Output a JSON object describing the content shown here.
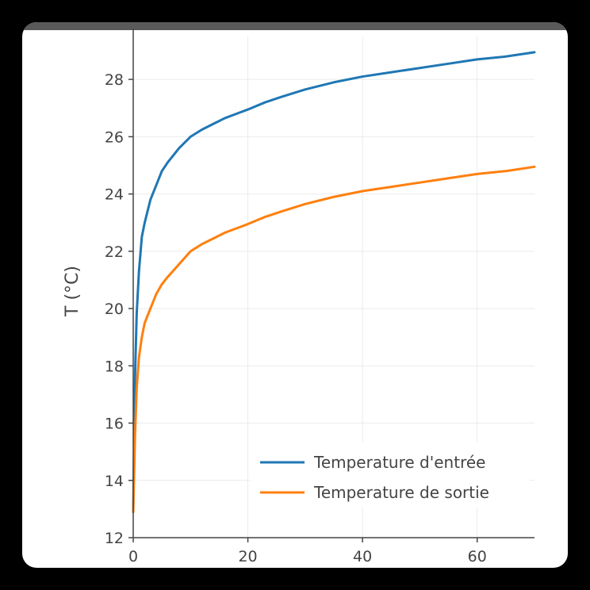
{
  "chart_data": {
    "type": "line",
    "title": "",
    "xlabel": "",
    "ylabel": "T (°C)",
    "xlim": [
      0,
      70
    ],
    "ylim": [
      12,
      29.5
    ],
    "xticks": [
      0,
      20,
      40,
      60
    ],
    "yticks": [
      12,
      14,
      16,
      18,
      20,
      22,
      24,
      26,
      28
    ],
    "grid": true,
    "legend_position": "bottom-right",
    "series": [
      {
        "name": "Temperature d'entrée",
        "color": "#1f77b4",
        "x": [
          0,
          0.3,
          0.6,
          1,
          1.5,
          2,
          3,
          4,
          5,
          6,
          8,
          10,
          12,
          14,
          16,
          18,
          20,
          23,
          26,
          30,
          35,
          40,
          45,
          50,
          55,
          60,
          65,
          70
        ],
        "y": [
          12.9,
          17.5,
          19.8,
          21.3,
          22.5,
          23.0,
          23.8,
          24.3,
          24.8,
          25.1,
          25.6,
          26.0,
          26.25,
          26.45,
          26.65,
          26.8,
          26.95,
          27.2,
          27.4,
          27.65,
          27.9,
          28.1,
          28.25,
          28.4,
          28.55,
          28.7,
          28.8,
          28.95
        ]
      },
      {
        "name": "Temperature de sortie",
        "color": "#ff7f0e",
        "x": [
          0,
          0.3,
          0.6,
          1,
          1.5,
          2,
          3,
          4,
          5,
          6,
          8,
          10,
          12,
          14,
          16,
          18,
          20,
          23,
          26,
          30,
          35,
          40,
          45,
          50,
          55,
          60,
          65,
          70
        ],
        "y": [
          12.9,
          15.5,
          17.2,
          18.3,
          19.0,
          19.5,
          20.0,
          20.5,
          20.85,
          21.1,
          21.55,
          22.0,
          22.25,
          22.45,
          22.65,
          22.8,
          22.95,
          23.2,
          23.4,
          23.65,
          23.9,
          24.1,
          24.25,
          24.4,
          24.55,
          24.7,
          24.8,
          24.95
        ]
      }
    ]
  }
}
